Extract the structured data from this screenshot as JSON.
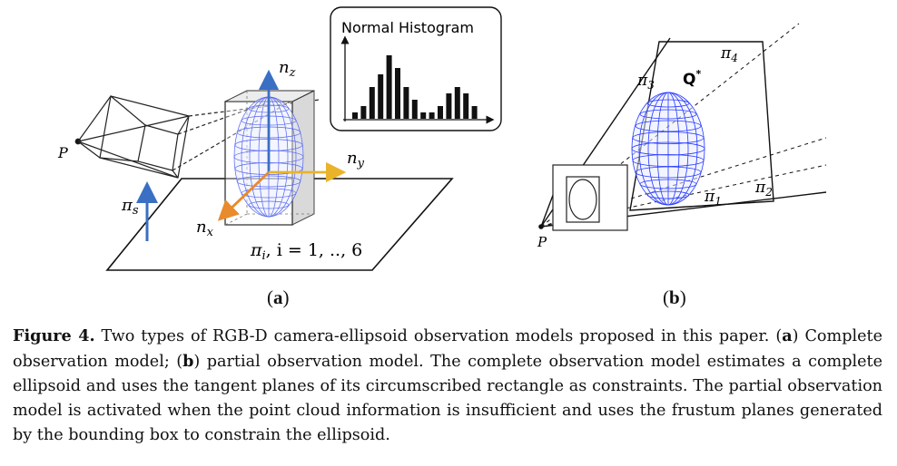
{
  "figure": {
    "histogram_title": "Normal Histogram",
    "histogram_values": [
      1,
      2,
      5,
      7,
      10,
      8,
      5,
      3,
      1,
      1,
      2,
      4,
      5,
      4,
      2
    ],
    "left": {
      "p_label": "P",
      "nz_label": "n",
      "nz_sub": "z",
      "ny_label": "n",
      "ny_sub": "y",
      "nx_label": "n",
      "nx_sub": "x",
      "pis_label": "π",
      "pis_sub": "s",
      "pii_label": "π",
      "pii_sub": "i",
      "pii_rest": ", i = 1, .., 6",
      "sub_label": "a"
    },
    "right": {
      "p_label": "P",
      "q_label": "Q",
      "q_sup": "*",
      "pi1": "π",
      "pi1_sub": "1",
      "pi2": "π",
      "pi2_sub": "2",
      "pi3": "π",
      "pi3_sub": "3",
      "pi4": "π",
      "pi4_sub": "4",
      "sub_label": "b"
    }
  },
  "caption": {
    "figure_label": "Figure 4.",
    "text1": " Two types of RGB-D camera-ellipsoid observation models proposed in this paper. (",
    "a": "a",
    "text2": ") Complete observation model; (",
    "b": "b",
    "text3": ") partial observation model. The complete observation model estimates a complete ellipsoid and uses the tangent planes of its circumscribed rectangle as constraints. The partial observation model is activated when the point cloud information is insufficient and uses the frustum planes generated by the bounding box to constrain the ellipsoid."
  }
}
